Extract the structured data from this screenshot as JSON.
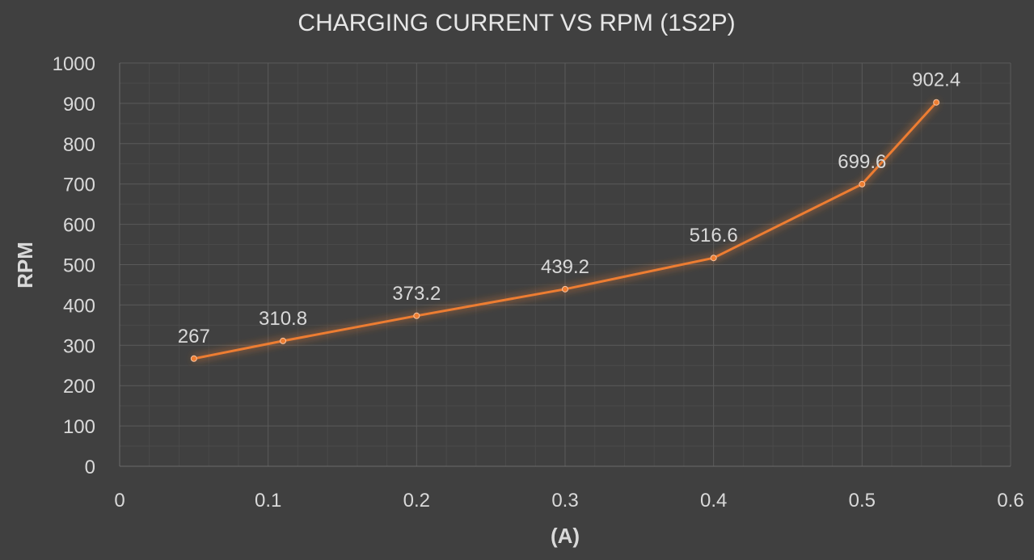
{
  "chart_data": {
    "type": "line",
    "title": "CHARGING CURRENT VS RPM (1S2P)",
    "xlabel": "(A)",
    "ylabel": "RPM",
    "xlim": [
      0,
      0.6
    ],
    "ylim": [
      0,
      1000
    ],
    "x_ticks": [
      0,
      0.1,
      0.2,
      0.3,
      0.4,
      0.5,
      0.6
    ],
    "x_tick_labels": [
      "0",
      "0.1",
      "0.2",
      "0.3",
      "0.4",
      "0.5",
      "0.6"
    ],
    "y_ticks": [
      0,
      100,
      200,
      300,
      400,
      500,
      600,
      700,
      800,
      900,
      1000
    ],
    "y_tick_labels": [
      "0",
      "100",
      "200",
      "300",
      "400",
      "500",
      "600",
      "700",
      "800",
      "900",
      "1000"
    ],
    "grid": true,
    "legend": "none",
    "series": [
      {
        "x": [
          0.05,
          0.11,
          0.2,
          0.3,
          0.4,
          0.5,
          0.55
        ],
        "y": [
          267,
          310.8,
          373.2,
          439.2,
          516.6,
          699.6,
          902.4
        ],
        "labels": [
          "267",
          "310.8",
          "373.2",
          "439.2",
          "516.6",
          "699.6",
          "902.4"
        ]
      }
    ],
    "colors": {
      "background": "#404040",
      "line": "#ed7d31",
      "glow": "#ed7d31"
    }
  }
}
